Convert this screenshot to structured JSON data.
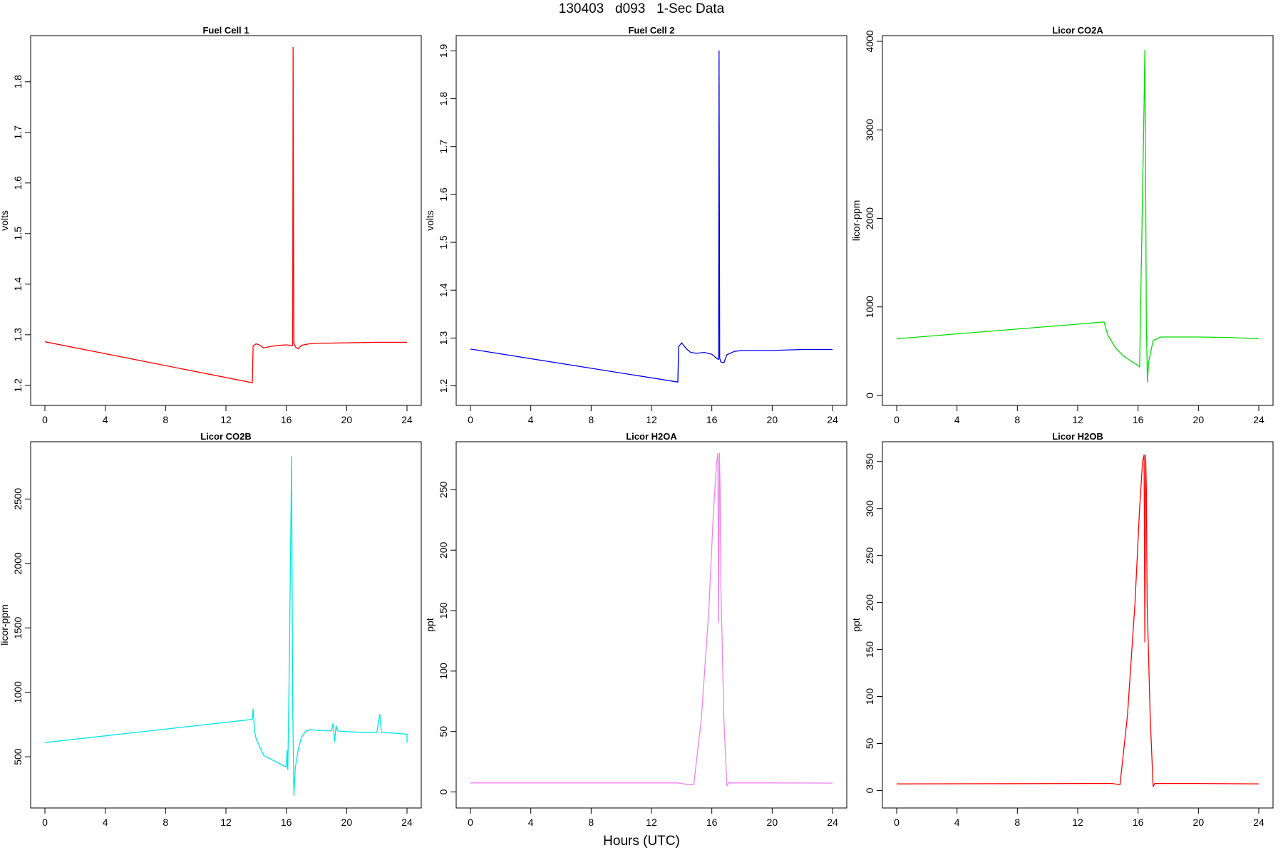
{
  "figure": {
    "title": "130403   d093   1-Sec Data",
    "xlabel": "Hours (UTC)"
  },
  "chart_data": [
    {
      "type": "line",
      "title": "Fuel Cell 1",
      "ylabel": "volts",
      "xlim": [
        0,
        24
      ],
      "ylim": [
        1.18,
        1.88
      ],
      "xticks": [
        0,
        4,
        8,
        12,
        16,
        20,
        24
      ],
      "yticks": [
        1.2,
        1.3,
        1.4,
        1.5,
        1.6,
        1.7,
        1.8
      ],
      "color": "#ff0000",
      "series": [
        {
          "x": [
            0,
            13.75,
            13.8,
            14.0,
            14.2,
            14.5,
            15.0,
            15.5,
            16.0,
            16.3,
            16.42,
            16.45,
            16.5,
            16.6,
            16.8,
            17.0,
            17.5,
            18.0,
            20.0,
            22.0,
            24.0
          ],
          "y": [
            1.286,
            1.205,
            1.278,
            1.282,
            1.28,
            1.274,
            1.277,
            1.279,
            1.28,
            1.279,
            1.278,
            1.868,
            1.285,
            1.276,
            1.272,
            1.279,
            1.282,
            1.283,
            1.284,
            1.285,
            1.285
          ]
        }
      ]
    },
    {
      "type": "line",
      "title": "Fuel Cell 2",
      "ylabel": "volts",
      "xlim": [
        0,
        24
      ],
      "ylim": [
        1.18,
        1.92
      ],
      "xticks": [
        0,
        4,
        8,
        12,
        16,
        20,
        24
      ],
      "yticks": [
        1.2,
        1.3,
        1.4,
        1.5,
        1.6,
        1.7,
        1.8,
        1.9
      ],
      "color": "#0000ee",
      "series": [
        {
          "x": [
            0,
            13.75,
            13.8,
            14.0,
            14.3,
            14.6,
            15.0,
            15.5,
            16.0,
            16.3,
            16.45,
            16.48,
            16.52,
            16.6,
            16.8,
            17.0,
            17.5,
            18.0,
            19.0,
            20.0,
            22.0,
            24.0
          ],
          "y": [
            1.277,
            1.208,
            1.282,
            1.29,
            1.278,
            1.27,
            1.268,
            1.27,
            1.266,
            1.258,
            1.255,
            1.9,
            1.258,
            1.25,
            1.248,
            1.265,
            1.272,
            1.274,
            1.274,
            1.274,
            1.276,
            1.276
          ]
        }
      ]
    },
    {
      "type": "line",
      "title": "Licor CO2A",
      "ylabel": "licor-ppm",
      "xlim": [
        0,
        24
      ],
      "ylim": [
        0,
        4000
      ],
      "xticks": [
        0,
        4,
        8,
        12,
        16,
        20,
        24
      ],
      "yticks": [
        0,
        1000,
        2000,
        3000,
        4000
      ],
      "color": "#00dd00",
      "series": [
        {
          "x": [
            0,
            13.75,
            14.0,
            14.5,
            15.0,
            15.5,
            16.0,
            16.1,
            16.3,
            16.4,
            16.45,
            16.5,
            16.55,
            16.62,
            16.7,
            17.0,
            17.5,
            18.0,
            20.0,
            22.0,
            24.0
          ],
          "y": [
            640,
            830,
            680,
            540,
            450,
            390,
            340,
            320,
            2300,
            3300,
            3900,
            2400,
            800,
            150,
            380,
            620,
            660,
            660,
            660,
            655,
            640
          ]
        }
      ]
    },
    {
      "type": "line",
      "title": "Licor CO2B",
      "ylabel": "licor-ppm",
      "xlim": [
        0,
        24
      ],
      "ylim": [
        180,
        2900
      ],
      "xticks": [
        0,
        4,
        8,
        12,
        16,
        20,
        24
      ],
      "yticks": [
        500,
        1000,
        1500,
        2000,
        2500
      ],
      "color": "#00e5e5",
      "series": [
        {
          "x": [
            0,
            13.75,
            13.8,
            13.9,
            14.0,
            14.3,
            14.5,
            15.0,
            15.5,
            16.0,
            16.05,
            16.1,
            16.2,
            16.35,
            16.42,
            16.5,
            16.6,
            16.8,
            17.0,
            17.3,
            17.6,
            18.0,
            19.0,
            19.1,
            19.2,
            19.3,
            19.4,
            20.0,
            21.0,
            22.0,
            22.2,
            22.3,
            22.4,
            23.0,
            24.0,
            24.0
          ],
          "y": [
            610,
            790,
            870,
            700,
            640,
            560,
            510,
            480,
            450,
            420,
            550,
            400,
            1200,
            2830,
            900,
            200,
            420,
            560,
            650,
            700,
            710,
            705,
            700,
            760,
            620,
            740,
            700,
            695,
            690,
            690,
            830,
            690,
            688,
            685,
            675,
            610
          ]
        }
      ]
    },
    {
      "type": "line",
      "title": "Licor H2OA",
      "ylabel": "ppt",
      "xlim": [
        0,
        24
      ],
      "ylim": [
        -5,
        285
      ],
      "xticks": [
        0,
        4,
        8,
        12,
        16,
        20,
        24
      ],
      "yticks": [
        0,
        50,
        100,
        150,
        200,
        250
      ],
      "color": "#ee82ee",
      "series": [
        {
          "x": [
            0,
            13.75,
            14.5,
            14.8,
            15.3,
            15.8,
            16.1,
            16.3,
            16.4,
            16.45,
            16.5,
            16.55,
            16.6,
            16.8,
            17.0,
            17.1,
            17.5,
            18.0,
            20.0,
            24.0
          ],
          "y": [
            7.5,
            7.5,
            6.0,
            6.0,
            60,
            150,
            230,
            270,
            280,
            140,
            280,
            250,
            170,
            60,
            5.0,
            7.5,
            7.5,
            7.5,
            7.5,
            7.3
          ]
        }
      ]
    },
    {
      "type": "line",
      "title": "Licor H2OB",
      "ylabel": "ppt",
      "xlim": [
        0,
        24
      ],
      "ylim": [
        -8,
        365
      ],
      "xticks": [
        0,
        4,
        8,
        12,
        16,
        20,
        24
      ],
      "yticks": [
        0,
        50,
        100,
        150,
        200,
        250,
        300,
        350
      ],
      "color": "#ff0000",
      "series": [
        {
          "x": [
            0,
            13.75,
            14.3,
            14.8,
            15.3,
            15.8,
            16.1,
            16.3,
            16.4,
            16.45,
            16.5,
            16.55,
            16.6,
            16.8,
            17.0,
            17.1,
            17.5,
            18.0,
            20.0,
            24.0
          ],
          "y": [
            7.0,
            7.5,
            7.5,
            6.0,
            80,
            200,
            300,
            350,
            357,
            158,
            357,
            320,
            200,
            80,
            4.0,
            7.5,
            7.5,
            7.5,
            7.5,
            7.0
          ]
        }
      ]
    }
  ]
}
